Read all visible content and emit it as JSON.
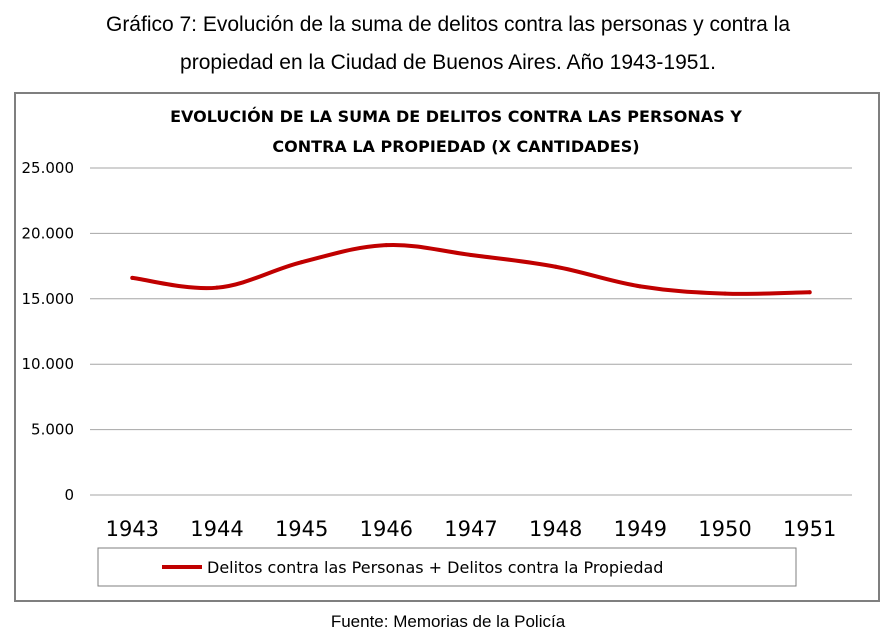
{
  "caption": {
    "line1": "Gráfico 7: Evolución de la suma de delitos contra las personas y contra la",
    "line2": "propiedad en la Ciudad de Buenos Aires. Año 1943-1951."
  },
  "source": "Fuente: Memorias de la Policía",
  "chart_data": {
    "type": "line",
    "title_lines": [
      "EVOLUCIÓN DE LA SUMA DE  DELITOS CONTRA LAS PERSONAS Y",
      "CONTRA LA PROPIEDAD (X CANTIDADES)"
    ],
    "categories": [
      "1943",
      "1944",
      "1945",
      "1946",
      "1947",
      "1948",
      "1949",
      "1950",
      "1951"
    ],
    "series": [
      {
        "name": "Delitos contra las Personas + Delitos contra la Propiedad",
        "values": [
          16600,
          15850,
          17800,
          19100,
          18350,
          17450,
          15950,
          15400,
          15500
        ],
        "color": "#c00000"
      }
    ],
    "ylim": [
      0,
      25000
    ],
    "yticks": [
      0,
      5000,
      10000,
      15000,
      20000,
      25000
    ],
    "ytick_labels": [
      "0",
      "5.000",
      "10.000",
      "15.000",
      "20.000",
      "25.000"
    ],
    "grid": true,
    "legend": "bottom",
    "xlabel": "",
    "ylabel": ""
  }
}
